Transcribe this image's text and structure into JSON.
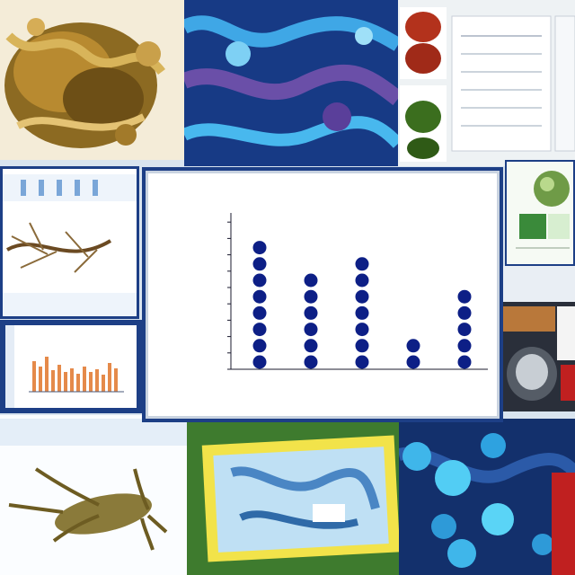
{
  "chart_data": {
    "type": "scatter",
    "title": "",
    "xlabel": "",
    "ylabel": "",
    "categories": [
      "",
      "",
      "",
      "",
      ""
    ],
    "values": [
      8,
      6,
      7,
      2,
      5
    ],
    "ylim": [
      0,
      9
    ],
    "marker_color": "#0d1f86",
    "grid": false
  },
  "palette": {
    "frame": "#14346e",
    "card": "#ffffff",
    "accent_orange": "#e58a4a"
  }
}
